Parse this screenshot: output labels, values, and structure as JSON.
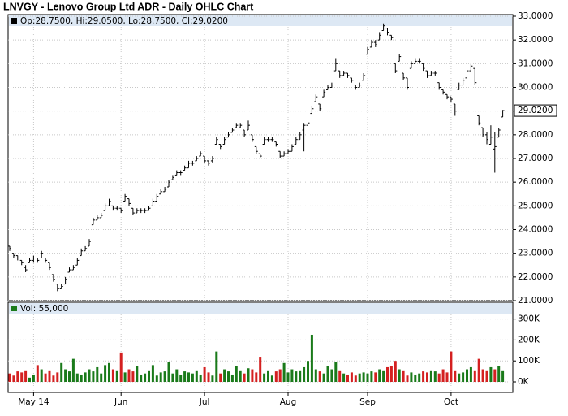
{
  "chart_data": [
    {
      "type": "ohlc",
      "title": "LNVGY - Lenovo Group Ltd ADR - Daily OHLC Chart",
      "legend": "Op:28.7500, Hi:29.0500, Lo:28.7500, Cl:29.0200",
      "last_label": "29.0200",
      "color": "#000000",
      "grid": true,
      "categories": [
        null,
        null,
        null,
        null,
        null,
        null,
        "May 14",
        null,
        null,
        null,
        null,
        null,
        null,
        null,
        null,
        null,
        null,
        null,
        null,
        null,
        null,
        null,
        null,
        null,
        null,
        null,
        null,
        null,
        "Jun",
        null,
        null,
        null,
        null,
        null,
        null,
        null,
        null,
        null,
        null,
        null,
        null,
        null,
        null,
        null,
        null,
        null,
        null,
        null,
        null,
        "Jul",
        null,
        null,
        null,
        null,
        null,
        null,
        null,
        null,
        null,
        null,
        null,
        null,
        null,
        null,
        null,
        null,
        null,
        null,
        null,
        null,
        "Aug",
        null,
        null,
        null,
        null,
        null,
        null,
        null,
        null,
        null,
        null,
        null,
        null,
        null,
        null,
        null,
        null,
        null,
        null,
        null,
        "Sep",
        null,
        null,
        null,
        null,
        null,
        null,
        null,
        null,
        null,
        null,
        null,
        null,
        null,
        null,
        null,
        null,
        null,
        null,
        null,
        null,
        "Oct",
        null,
        null,
        null,
        null,
        null,
        null,
        null,
        null,
        null,
        null,
        null,
        null,
        null
      ],
      "open": [
        23.3,
        23.0,
        22.9,
        22.7,
        22.4,
        22.6,
        22.7,
        22.8,
        22.8,
        22.8,
        22.6,
        22.1,
        21.7,
        21.5,
        21.7,
        22.2,
        22.3,
        22.5,
        22.9,
        23.1,
        23.3,
        24.2,
        24.4,
        24.5,
        24.8,
        25.0,
        25.0,
        24.9,
        24.9,
        25.2,
        25.3,
        24.9,
        24.7,
        24.8,
        24.8,
        24.8,
        25.0,
        25.2,
        25.5,
        25.6,
        25.8,
        26.1,
        26.3,
        26.4,
        26.5,
        26.6,
        26.8,
        26.9,
        27.1,
        27.1,
        26.9,
        26.9,
        27.6,
        27.6,
        27.6,
        27.9,
        28.1,
        28.3,
        28.3,
        28.2,
        28.2,
        28.0,
        27.5,
        27.2,
        27.6,
        27.8,
        27.8,
        27.7,
        27.3,
        27.1,
        27.2,
        27.3,
        27.6,
        27.8,
        28.2,
        28.4,
        28.9,
        29.4,
        29.3,
        29.6,
        29.9,
        30.0,
        30.7,
        30.7,
        30.5,
        30.6,
        30.4,
        30.1,
        30.0,
        30.3,
        31.4,
        31.7,
        31.9,
        32.0,
        32.4,
        32.5,
        32.2,
        31.0,
        31.1,
        30.6,
        30.4,
        30.8,
        31.0,
        31.1,
        31.0,
        30.7,
        30.5,
        30.6,
        30.2,
        29.9,
        29.7,
        29.6,
        29.3,
        29.9,
        30.1,
        30.4,
        30.7,
        30.8,
        28.8,
        28.3,
        28.0,
        27.6,
        27.4,
        27.9,
        28.75
      ],
      "high": [
        23.3,
        23.0,
        22.9,
        22.7,
        22.5,
        22.8,
        22.9,
        22.8,
        23.1,
        22.8,
        22.6,
        22.1,
        21.7,
        21.7,
        22.0,
        22.4,
        22.5,
        22.8,
        23.2,
        23.3,
        23.6,
        24.5,
        24.6,
        24.7,
        25.1,
        25.3,
        25.0,
        25.0,
        24.9,
        25.5,
        25.3,
        24.9,
        24.9,
        24.9,
        24.9,
        25.0,
        25.3,
        25.5,
        25.7,
        25.8,
        26.1,
        26.3,
        26.5,
        26.5,
        26.7,
        26.9,
        26.9,
        27.1,
        27.3,
        27.1,
        26.9,
        27.1,
        27.9,
        27.6,
        27.9,
        28.1,
        28.3,
        28.5,
        28.5,
        28.2,
        28.6,
        28.0,
        27.5,
        27.2,
        27.9,
        27.9,
        27.9,
        27.7,
        27.3,
        27.3,
        27.4,
        27.6,
        27.9,
        28.1,
        28.5,
        28.6,
        29.2,
        29.7,
        29.3,
        29.9,
        30.1,
        30.2,
        31.2,
        30.7,
        30.7,
        30.6,
        30.4,
        30.1,
        30.2,
        30.6,
        31.7,
        32.0,
        32.0,
        32.3,
        32.7,
        32.5,
        32.2,
        31.0,
        31.4,
        30.6,
        30.4,
        31.1,
        31.2,
        31.2,
        31.0,
        30.7,
        30.7,
        30.7,
        30.2,
        29.9,
        29.7,
        29.6,
        29.3,
        30.2,
        30.4,
        30.8,
        31.0,
        30.8,
        28.8,
        28.3,
        28.1,
        28.4,
        28.1,
        28.3,
        29.05
      ],
      "low": [
        23.1,
        22.8,
        22.7,
        22.5,
        22.2,
        22.6,
        22.6,
        22.6,
        22.8,
        22.6,
        22.3,
        21.8,
        21.4,
        21.5,
        21.7,
        22.2,
        22.3,
        22.5,
        22.9,
        23.1,
        23.3,
        24.2,
        24.4,
        24.5,
        24.8,
        25.0,
        24.8,
        24.8,
        24.7,
        25.2,
        25.0,
        24.6,
        24.7,
        24.7,
        24.7,
        24.8,
        25.0,
        25.2,
        25.5,
        25.6,
        25.8,
        26.1,
        26.3,
        26.3,
        26.5,
        26.6,
        26.7,
        26.9,
        27.1,
        26.8,
        26.7,
        26.8,
        27.6,
        27.4,
        27.6,
        27.9,
        28.1,
        28.3,
        28.3,
        27.9,
        28.2,
        27.7,
        27.2,
        27.0,
        27.6,
        27.7,
        27.7,
        27.5,
        27.0,
        27.1,
        27.2,
        27.3,
        27.6,
        27.8,
        27.3,
        28.4,
        28.9,
        29.4,
        29.0,
        29.6,
        29.9,
        30.0,
        30.7,
        30.4,
        30.5,
        30.4,
        30.2,
        29.9,
        30.0,
        30.3,
        31.4,
        31.7,
        31.7,
        32.0,
        32.4,
        32.2,
        32.0,
        30.6,
        31.1,
        30.3,
        29.9,
        30.8,
        31.0,
        31.0,
        30.7,
        30.4,
        30.5,
        30.5,
        29.9,
        29.7,
        29.5,
        29.4,
        28.8,
        29.9,
        30.1,
        30.4,
        30.7,
        30.1,
        28.4,
        27.9,
        27.6,
        27.6,
        26.4,
        27.9,
        28.75
      ],
      "close": [
        23.2,
        22.9,
        22.8,
        22.6,
        22.3,
        22.7,
        22.8,
        22.7,
        23.0,
        22.7,
        22.4,
        21.9,
        21.5,
        21.6,
        21.9,
        22.3,
        22.4,
        22.7,
        23.1,
        23.2,
        23.5,
        24.4,
        24.5,
        24.6,
        25.0,
        25.2,
        24.9,
        24.9,
        24.8,
        25.4,
        25.1,
        24.7,
        24.8,
        24.8,
        24.8,
        24.9,
        25.2,
        25.4,
        25.6,
        25.7,
        26.0,
        26.2,
        26.4,
        26.4,
        26.6,
        26.8,
        26.8,
        27.0,
        27.2,
        26.9,
        26.8,
        27.0,
        27.8,
        27.5,
        27.8,
        28.0,
        28.2,
        28.4,
        28.4,
        28.0,
        28.4,
        27.8,
        27.3,
        27.1,
        27.8,
        27.8,
        27.8,
        27.6,
        27.1,
        27.2,
        27.3,
        27.5,
        27.8,
        28.0,
        28.4,
        28.5,
        29.1,
        29.6,
        29.1,
        29.8,
        30.0,
        30.1,
        31.0,
        30.5,
        30.6,
        30.5,
        30.3,
        30.0,
        30.1,
        30.5,
        31.6,
        31.9,
        31.8,
        32.2,
        32.6,
        32.3,
        32.1,
        30.7,
        31.3,
        30.4,
        30.0,
        31.0,
        31.1,
        31.1,
        30.8,
        30.5,
        30.6,
        30.6,
        30.0,
        29.8,
        29.6,
        29.5,
        29.0,
        30.1,
        30.3,
        30.7,
        30.9,
        30.2,
        28.5,
        28.0,
        27.8,
        27.9,
        27.5,
        28.2,
        29.02
      ],
      "ylim": [
        21,
        33
      ],
      "yticks": [
        {
          "value": 21,
          "label": "21.0000"
        },
        {
          "value": 22,
          "label": "22.0000"
        },
        {
          "value": 23,
          "label": "23.0000"
        },
        {
          "value": 24,
          "label": "24.0000"
        },
        {
          "value": 25,
          "label": "25.0000"
        },
        {
          "value": 26,
          "label": "26.0000"
        },
        {
          "value": 27,
          "label": "27.0000"
        },
        {
          "value": 28,
          "label": "28.0000"
        },
        {
          "value": 29,
          "label": "29.0000"
        },
        {
          "value": 30,
          "label": "30.0000"
        },
        {
          "value": 31,
          "label": "31.0000"
        },
        {
          "value": 32,
          "label": "32.0000"
        },
        {
          "value": 33,
          "label": "33.0000"
        }
      ]
    },
    {
      "type": "bar",
      "legend": "Vol: 55,000",
      "up_color": "#1a7a1a",
      "down_color": "#d42020",
      "grid": true,
      "values": [
        40000,
        30000,
        50000,
        45000,
        55000,
        20000,
        35000,
        80000,
        60000,
        40000,
        55000,
        30000,
        45000,
        90000,
        60000,
        50000,
        110000,
        40000,
        35000,
        45000,
        60000,
        50000,
        70000,
        40000,
        80000,
        90000,
        60000,
        55000,
        140000,
        45000,
        60000,
        50000,
        75000,
        35000,
        40000,
        55000,
        80000,
        30000,
        45000,
        50000,
        95000,
        40000,
        60000,
        35000,
        50000,
        45000,
        40000,
        55000,
        35000,
        70000,
        45000,
        30000,
        145000,
        40000,
        60000,
        50000,
        35000,
        75000,
        55000,
        40000,
        65000,
        60000,
        45000,
        120000,
        40000,
        55000,
        30000,
        50000,
        60000,
        90000,
        45000,
        60000,
        50000,
        55000,
        70000,
        100000,
        225000,
        60000,
        50000,
        40000,
        75000,
        60000,
        95000,
        55000,
        40000,
        35000,
        45000,
        30000,
        40000,
        45000,
        40000,
        50000,
        45000,
        60000,
        55000,
        70000,
        75000,
        100000,
        60000,
        55000,
        30000,
        45000,
        35000,
        40000,
        50000,
        45000,
        55000,
        50000,
        40000,
        60000,
        45000,
        145000,
        55000,
        40000,
        45000,
        60000,
        70000,
        55000,
        110000,
        60000,
        55000,
        70000,
        60000,
        75000,
        55000
      ],
      "ylim": [
        0,
        380000
      ],
      "yticks": [
        {
          "value": 0,
          "label": "0K"
        },
        {
          "value": 100000,
          "label": "100K"
        },
        {
          "value": 200000,
          "label": "200K"
        },
        {
          "value": 300000,
          "label": "300K"
        }
      ]
    }
  ]
}
